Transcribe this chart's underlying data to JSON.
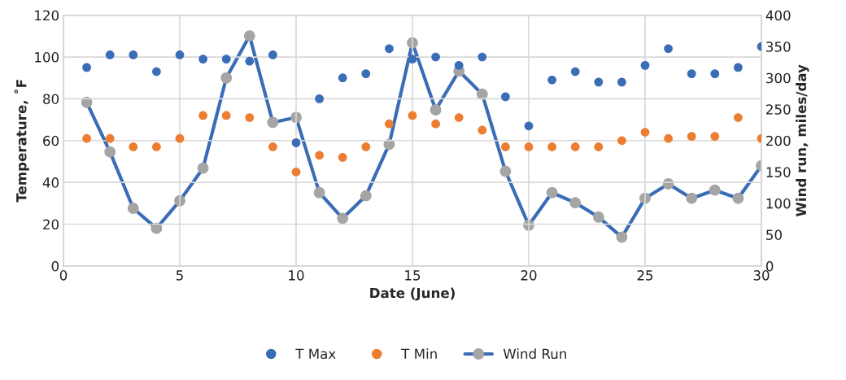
{
  "chart_data": {
    "type": "scatter",
    "xlabel": "Date (June)",
    "ylabel": "Temperature, ˚F",
    "y2label": "Wind run, miles/day",
    "x": [
      1,
      2,
      3,
      4,
      5,
      6,
      7,
      8,
      9,
      10,
      11,
      12,
      13,
      14,
      15,
      16,
      17,
      18,
      19,
      20,
      21,
      22,
      23,
      24,
      25,
      26,
      27,
      28,
      29,
      30
    ],
    "series": [
      {
        "name": "T Max",
        "color": "#3a6db5",
        "values": [
          95,
          101,
          101,
          93,
          101,
          99,
          99,
          98,
          101,
          59,
          80,
          90,
          92,
          104,
          99,
          100,
          96,
          100,
          81,
          67,
          89,
          93,
          88,
          88,
          96,
          104,
          92,
          92,
          95,
          105
        ]
      },
      {
        "name": "T Min",
        "color": "#ed7d31",
        "values": [
          61,
          61,
          57,
          57,
          61,
          72,
          72,
          71,
          57,
          45,
          53,
          52,
          57,
          68,
          72,
          68,
          71,
          65,
          57,
          57,
          57,
          57,
          57,
          60,
          64,
          61,
          62,
          62,
          71,
          61
        ]
      },
      {
        "name": "Wind Run",
        "color": "#3a6db5",
        "type": "line",
        "axis": "y2",
        "values": [
          261,
          182,
          92,
          60,
          104,
          156,
          300,
          367,
          229,
          237,
          117,
          76,
          112,
          194,
          356,
          249,
          311,
          274,
          151,
          65,
          117,
          101,
          78,
          46,
          108,
          131,
          108,
          121,
          108,
          160
        ]
      }
    ],
    "xlim": [
      0,
      30
    ],
    "xticks": [
      0,
      5,
      10,
      15,
      20,
      25,
      30
    ],
    "ylim": [
      0,
      120
    ],
    "yticks": [
      0,
      20,
      40,
      60,
      80,
      100,
      120
    ],
    "y2lim": [
      0,
      400
    ],
    "y2ticks": [
      0,
      50,
      100,
      150,
      200,
      250,
      300,
      350,
      400
    ],
    "grid": true,
    "legend": "bottom",
    "marker": "circle"
  }
}
